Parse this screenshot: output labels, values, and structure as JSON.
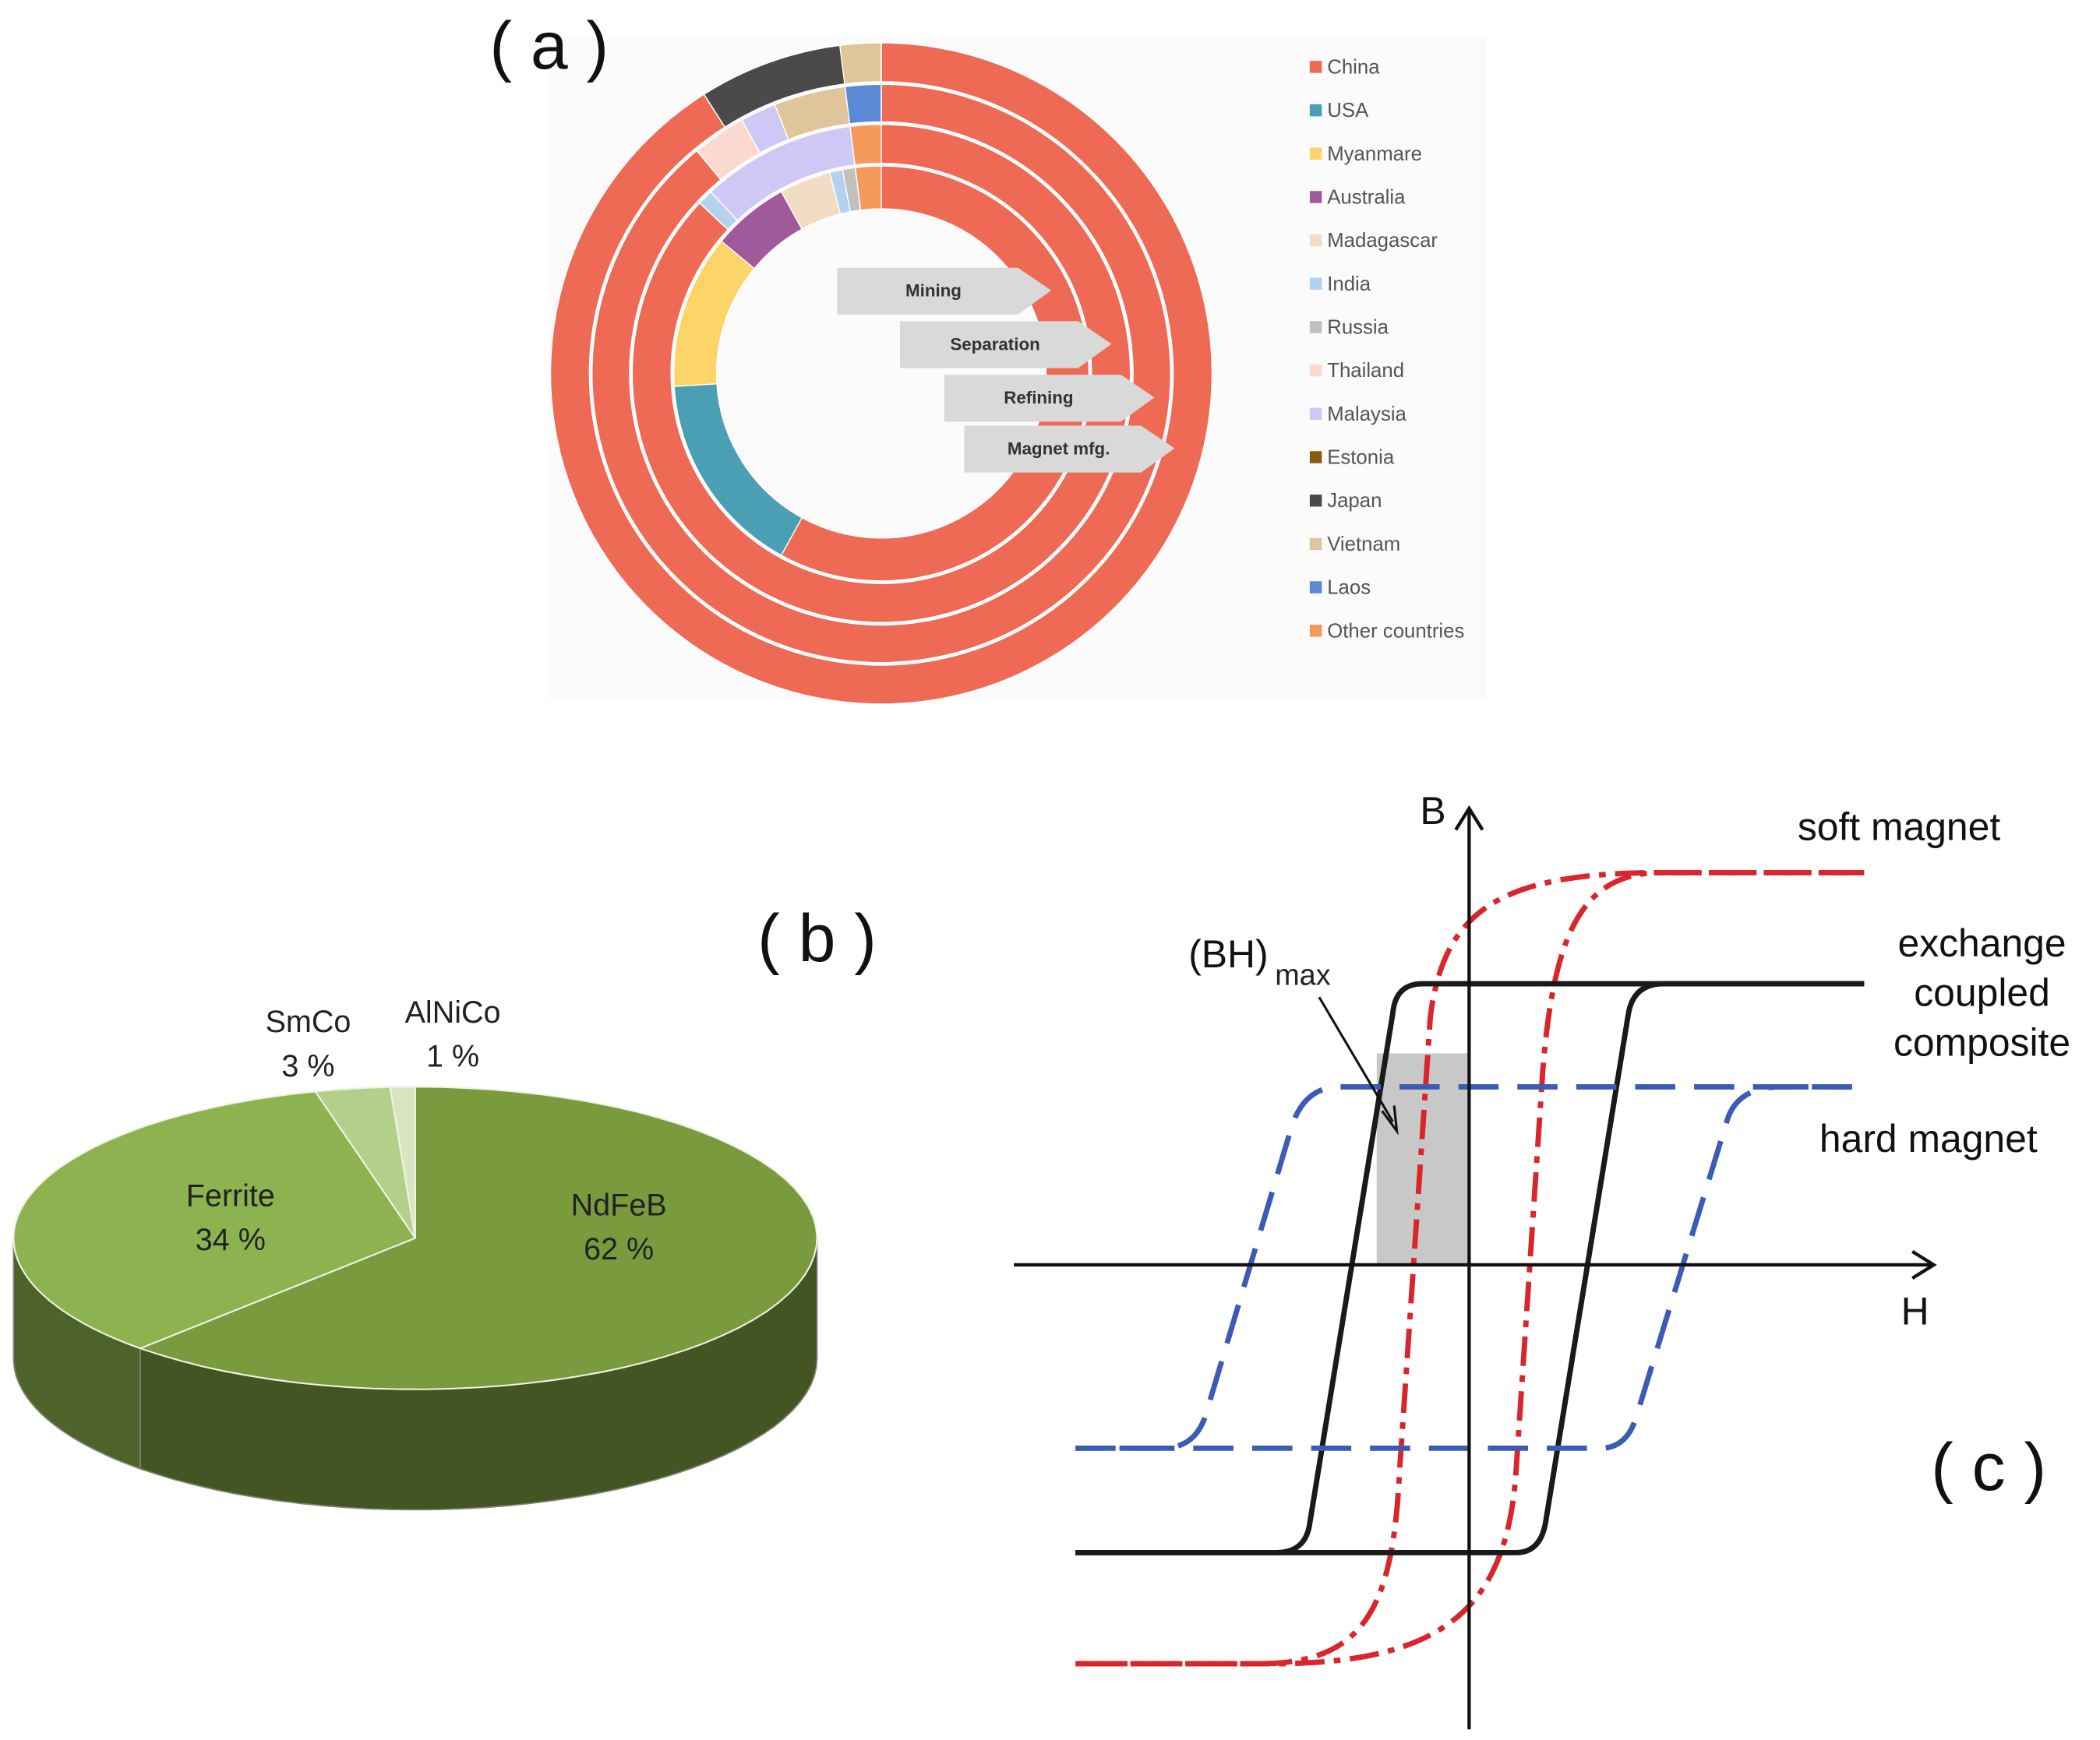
{
  "chart_data": [
    {
      "type": "donut-rings",
      "title": "( a )",
      "categories": [
        "China",
        "USA",
        "Myanmare",
        "Australia",
        "Madagascar",
        "India",
        "Russia",
        "Thailand",
        "Malaysia",
        "Estonia",
        "Japan",
        "Vietnam",
        "Laos",
        "Other countries"
      ],
      "colors": [
        "#ee6a55",
        "#4a9fb5",
        "#fdd468",
        "#a0599a",
        "#f2dcc4",
        "#b4d2ee",
        "#c0c0c0",
        "#fcd9d0",
        "#cfc8f5",
        "#8b5a10",
        "#4a4a4a",
        "#e0c59a",
        "#5a8ad6",
        "#f59a5a"
      ],
      "series": [
        {
          "name": "Mining",
          "values": [
            58,
            16,
            12,
            6,
            4,
            1,
            1,
            0,
            0,
            0,
            0,
            0,
            0,
            2
          ]
        },
        {
          "name": "Separation",
          "values": [
            87,
            0,
            0,
            0,
            0,
            1,
            0,
            0,
            10,
            0,
            0,
            0,
            0,
            2
          ]
        },
        {
          "name": "Refining",
          "values": [
            89,
            0,
            0,
            0,
            0,
            0,
            0,
            3,
            2,
            0,
            0,
            4,
            2,
            0
          ]
        },
        {
          "name": "Magnet mfg.",
          "values": [
            91,
            0,
            0,
            0,
            0,
            0,
            0,
            0,
            0,
            0,
            7,
            2,
            0,
            0
          ]
        }
      ]
    },
    {
      "type": "pie3d",
      "title": "( b )",
      "categories": [
        "NdFeB",
        "Ferrite",
        "SmCo",
        "AlNiCo"
      ],
      "values": [
        62,
        34,
        3,
        1
      ],
      "value_labels": [
        "62 %",
        "34 %",
        "3 %",
        "1 %"
      ],
      "colors": [
        "#7a9a3e",
        "#8db350",
        "#b4cf8a",
        "#d8e6c0"
      ]
    }
  ],
  "diagram": {
    "title": "( c )",
    "y_axis": "B",
    "x_axis": "H",
    "curves": {
      "soft": "soft magnet",
      "composite": [
        "exchange",
        "coupled",
        "composite"
      ],
      "hard": "hard magnet"
    },
    "energy_product": {
      "label": "(BH)",
      "subscript": "max"
    }
  }
}
